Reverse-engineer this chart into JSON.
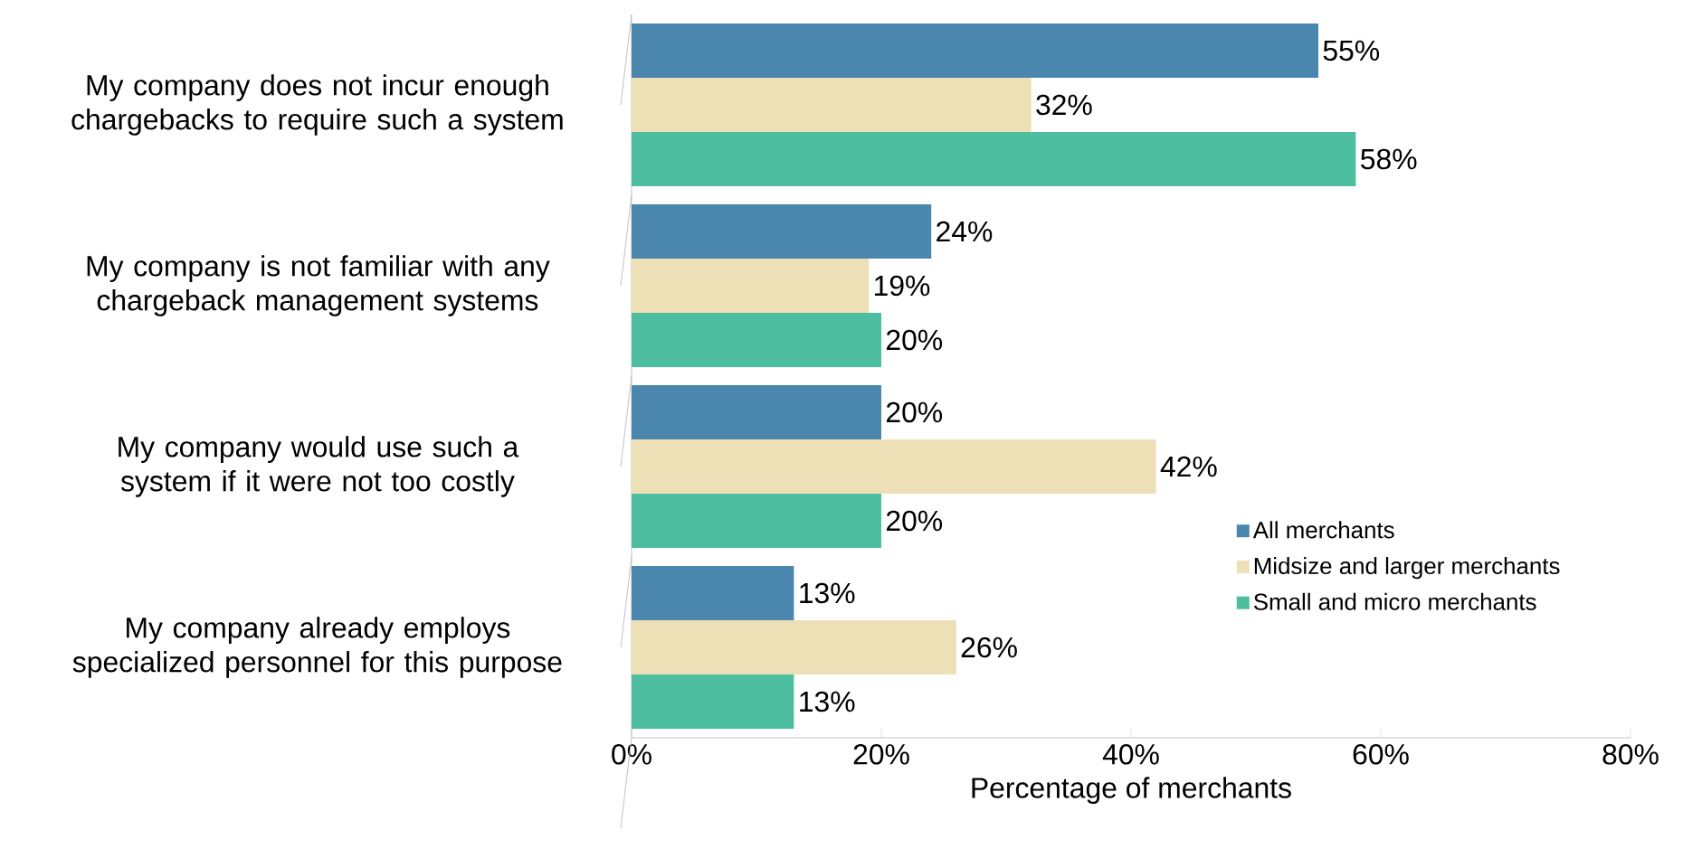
{
  "chart_data": {
    "type": "bar",
    "orientation": "horizontal",
    "xlabel": "Percentage of merchants",
    "categories": [
      "My company does not incur enough chargebacks to require such a system",
      "My company is not familiar with any chargeback management systems",
      "My company would use such a system if it were not too costly",
      "My company already employs specialized personnel for this purpose"
    ],
    "series": [
      {
        "name": "All merchants",
        "color": "#4a86ad",
        "values": [
          55,
          24,
          20,
          13
        ],
        "value_labels": [
          "55%",
          "24%",
          "20%",
          "13%"
        ]
      },
      {
        "name": "Midsize and larger merchants",
        "color": "#ede0b6",
        "values": [
          32,
          19,
          42,
          26
        ],
        "value_labels": [
          "32%",
          "19%",
          "42%",
          "26%"
        ]
      },
      {
        "name": "Small and micro merchants",
        "color": "#4dbfa0",
        "values": [
          58,
          20,
          20,
          13
        ],
        "value_labels": [
          "58%",
          "20%",
          "20%",
          "13%"
        ]
      }
    ],
    "xlim": [
      0,
      80
    ],
    "xticks": [
      {
        "value": 0,
        "label": "0%"
      },
      {
        "value": 20,
        "label": "20%"
      },
      {
        "value": 40,
        "label": "40%"
      },
      {
        "value": 60,
        "label": "60%"
      },
      {
        "value": 80,
        "label": "80%"
      }
    ],
    "legend": "bottom right",
    "grid": false
  }
}
